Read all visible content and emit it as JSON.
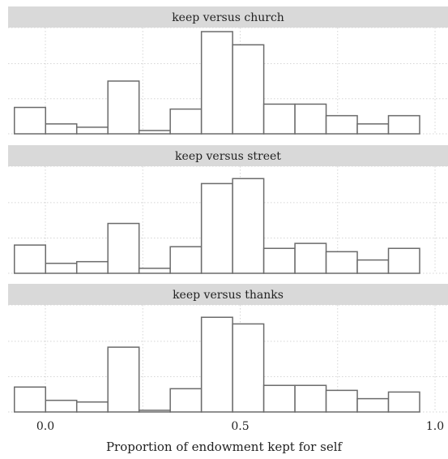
{
  "chart_data": [
    {
      "type": "bar",
      "title": "keep versus church",
      "x": [
        0.0,
        0.08,
        0.16,
        0.24,
        0.32,
        0.4,
        0.48,
        0.56,
        0.64,
        0.72,
        0.8,
        0.88,
        0.96
      ],
      "values": [
        16,
        6,
        4,
        32,
        2,
        15,
        62,
        54,
        18,
        18,
        11,
        6,
        11
      ],
      "ylim": [
        0,
        62
      ],
      "grid": true
    },
    {
      "type": "bar",
      "title": "keep versus street",
      "x": [
        0.0,
        0.08,
        0.16,
        0.24,
        0.32,
        0.4,
        0.48,
        0.56,
        0.64,
        0.72,
        0.8,
        0.88,
        0.96
      ],
      "values": [
        17,
        6,
        7,
        30,
        3,
        16,
        54,
        57,
        15,
        18,
        13,
        8,
        15
      ],
      "ylim": [
        0,
        62
      ],
      "grid": true
    },
    {
      "type": "bar",
      "title": "keep versus thanks",
      "x": [
        0.0,
        0.08,
        0.16,
        0.24,
        0.32,
        0.4,
        0.48,
        0.56,
        0.64,
        0.72,
        0.8,
        0.88,
        0.96
      ],
      "values": [
        15,
        7,
        6,
        39,
        1,
        14,
        57,
        53,
        16,
        16,
        13,
        8,
        12
      ],
      "ylim": [
        0,
        62
      ],
      "grid": true
    }
  ],
  "xaxis": {
    "ticks": [
      0.0,
      0.5,
      1.0
    ],
    "tick_labels": [
      "0.0",
      "0.5",
      "1.0"
    ],
    "xlim": [
      0.0,
      1.0
    ],
    "label": "Proportion of endowment kept for self"
  },
  "colors": {
    "strip_bg": "#d9d9d9",
    "bar_fill": "#ffffff",
    "bar_stroke": "#6b6b6b",
    "grid": "#d5d5d5",
    "text": "#222222"
  }
}
